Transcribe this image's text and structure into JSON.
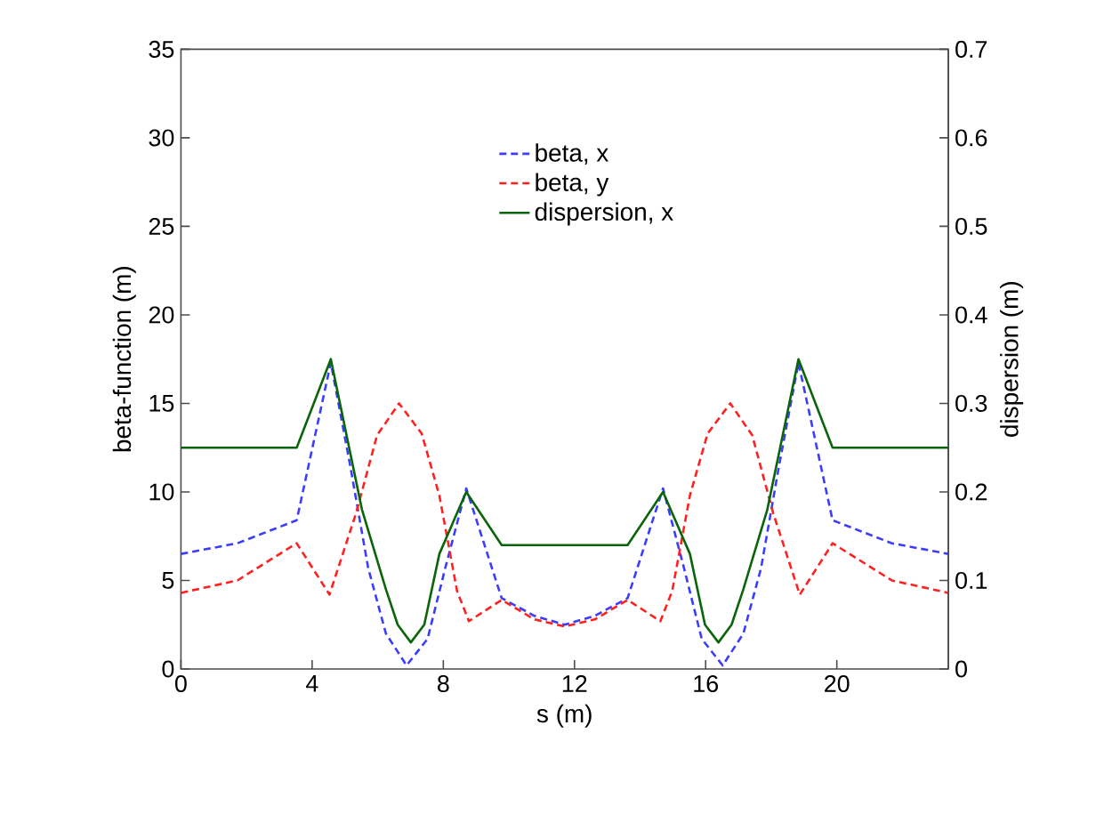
{
  "chart_data": {
    "type": "line",
    "xlabel": "s (m)",
    "ylabel": "beta-function (m)",
    "y2label": "dispersion (m)",
    "xlim": [
      0,
      23.4
    ],
    "xticks": [
      0,
      4,
      8,
      12,
      16,
      20
    ],
    "ylim": [
      0,
      35
    ],
    "yticks": [
      0,
      5,
      10,
      15,
      20,
      25,
      30,
      35
    ],
    "y2lim": [
      0,
      0.7
    ],
    "y2ticks": [
      0,
      0.1,
      0.2,
      0.3,
      0.4,
      0.5,
      0.6,
      0.7
    ],
    "legend": "top",
    "marker": "none",
    "series": [
      {
        "name": "beta, x",
        "color": "#3c3cff",
        "line_style": "dashed",
        "x": [
          0,
          1.72,
          3.53,
          4.57,
          5.16,
          5.71,
          6.25,
          6.88,
          7.52,
          8.06,
          8.7,
          9.24,
          9.78,
          10.78,
          11.7,
          12.62,
          13.62,
          14.16,
          14.7,
          15.34,
          15.88,
          16.52,
          17.15,
          17.69,
          18.24,
          18.83,
          19.87,
          21.68,
          23.4
        ],
        "values": [
          6.5,
          7.1,
          8.4,
          17.3,
          11.5,
          5.7,
          2.0,
          0.2,
          1.7,
          5.7,
          10.2,
          7.1,
          4.0,
          3.0,
          2.5,
          3.0,
          4.0,
          7.1,
          10.2,
          5.7,
          1.7,
          0.2,
          2.0,
          5.7,
          11.5,
          17.3,
          8.4,
          7.1,
          6.5
        ]
      },
      {
        "name": "beta, y",
        "color": "#ff2020",
        "line_style": "dashed",
        "x": [
          0,
          1.72,
          3.53,
          4.53,
          5.34,
          5.98,
          6.65,
          7.34,
          7.88,
          8.42,
          8.78,
          9.78,
          10.78,
          11.7,
          12.62,
          13.62,
          14.62,
          14.98,
          15.52,
          16.06,
          16.75,
          17.42,
          18.06,
          18.87,
          19.87,
          21.68,
          23.4
        ],
        "values": [
          4.3,
          5.0,
          7.1,
          4.2,
          8.8,
          13.2,
          15.0,
          13.3,
          9.8,
          4.4,
          2.7,
          3.9,
          2.8,
          2.4,
          2.8,
          3.9,
          2.7,
          4.4,
          9.8,
          13.3,
          15.0,
          13.2,
          8.8,
          4.2,
          7.1,
          5.0,
          4.3
        ]
      },
      {
        "name": "dispersion, x",
        "color": "#0a640a",
        "line_style": "solid",
        "axis": "y2",
        "x": [
          0,
          3.53,
          4.57,
          5.52,
          6.25,
          6.61,
          7.01,
          7.42,
          7.88,
          8.7,
          9.78,
          13.62,
          14.7,
          15.52,
          15.98,
          16.39,
          16.79,
          17.15,
          17.88,
          18.83,
          19.87,
          23.4
        ],
        "values": [
          0.25,
          0.25,
          0.35,
          0.18,
          0.09,
          0.05,
          0.03,
          0.05,
          0.13,
          0.2,
          0.14,
          0.14,
          0.2,
          0.13,
          0.05,
          0.03,
          0.05,
          0.09,
          0.18,
          0.35,
          0.25,
          0.25
        ]
      }
    ]
  }
}
